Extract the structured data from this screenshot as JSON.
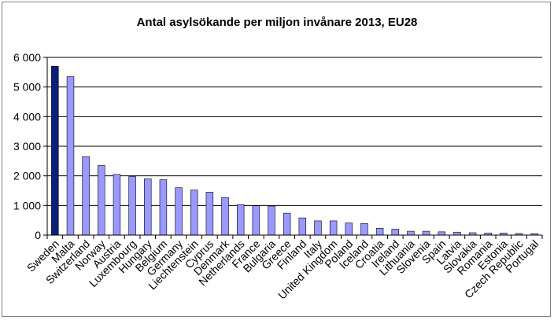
{
  "chart_data": {
    "type": "bar",
    "title": "Antal asylsökande per miljon invånare 2013, EU28",
    "xlabel": "",
    "ylabel": "",
    "ylim": [
      0,
      6000
    ],
    "yticks": [
      0,
      1000,
      2000,
      3000,
      4000,
      5000,
      6000
    ],
    "ytick_labels": [
      "0",
      "1 000",
      "2 000",
      "3 000",
      "4 000",
      "5 000",
      "6 000"
    ],
    "grid": true,
    "legend": "none",
    "colors": {
      "highlight": "#0a1f7a",
      "bar": "#9999ff",
      "edge": "#000000",
      "grid": "#000000"
    },
    "categories": [
      "Sweden",
      "Malta",
      "Switzerland",
      "Norway",
      "Austria",
      "Luxembourg",
      "Hungary",
      "Belgium",
      "Germany",
      "Liechtenstein",
      "Cyprus",
      "Denmark",
      "Netherlands",
      "France",
      "Bulgaria",
      "Greece",
      "Finland",
      "Italy",
      "United Kingdom",
      "Poland",
      "Iceland",
      "Croatia",
      "Ireland",
      "Lithuania",
      "Slovenia",
      "Spain",
      "Latvia",
      "Slovakia",
      "Romania",
      "Estonia",
      "Czech Republic",
      "Portugal"
    ],
    "values": [
      5700,
      5350,
      2650,
      2350,
      2050,
      1980,
      1900,
      1870,
      1600,
      1520,
      1450,
      1270,
      1030,
      990,
      980,
      740,
      580,
      480,
      480,
      410,
      390,
      230,
      200,
      130,
      130,
      110,
      100,
      80,
      70,
      70,
      55,
      50
    ],
    "highlight_index": 0
  }
}
